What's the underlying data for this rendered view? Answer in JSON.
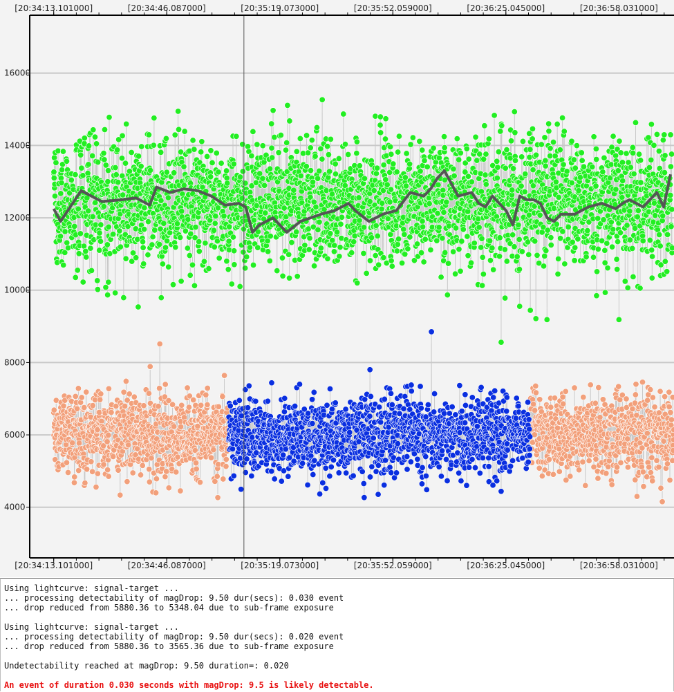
{
  "chart_data": {
    "type": "scatter",
    "x_tick_labels_top": [
      "[20:34:13.101000]",
      "[20:34:46.087000]",
      "[20:35:19.073000]",
      "[20:35:52.059000]",
      "[20:36:25.045000]",
      "[20:36:58.031000]"
    ],
    "x_tick_labels_bottom": [
      "[20:34:13.101000]",
      "[20:34:46.087000]",
      "[20:35:19.073000]",
      "[20:35:52.059000]",
      "[20:36:25.045000]",
      "[20:36:58.031000]"
    ],
    "x_tick_seconds": [
      0,
      32.986,
      65.972,
      98.958,
      131.944,
      164.93
    ],
    "xlim": [
      -7.0,
      181.0
    ],
    "y_ticks": [
      4000,
      6000,
      8000,
      10000,
      12000,
      14000,
      16000
    ],
    "y_tick_labels": [
      "4000",
      "6000",
      "8000",
      "10000",
      "12000",
      "14000",
      "16000"
    ],
    "ylim": [
      2600,
      17600
    ],
    "grid": true,
    "cursor_x": 55.5,
    "series": [
      {
        "role": "reference-star",
        "color": "#22ee22",
        "mean": 12400,
        "noise_sd": 1400,
        "x_range": [
          0,
          181.0
        ]
      },
      {
        "role": "reference-smoothed",
        "color": "#555555",
        "x": [
          0,
          2,
          8,
          14,
          20,
          24,
          28,
          30,
          34,
          38,
          42,
          46,
          50,
          54,
          56,
          58,
          60,
          64,
          68,
          72,
          78,
          82,
          86,
          88,
          92,
          96,
          100,
          104,
          108,
          110,
          112,
          114,
          118,
          122,
          124,
          126,
          128,
          130,
          132,
          134,
          136,
          138,
          140,
          142,
          144,
          146,
          148,
          152,
          156,
          160,
          164,
          166,
          168,
          172,
          174,
          176,
          178,
          180
        ],
        "y": [
          12250,
          11900,
          12750,
          12450,
          12500,
          12550,
          12350,
          12850,
          12700,
          12800,
          12750,
          12600,
          12350,
          12400,
          12300,
          11600,
          11800,
          12000,
          11600,
          11900,
          12100,
          12200,
          12400,
          12200,
          11900,
          12100,
          12200,
          12700,
          12600,
          12800,
          13100,
          13300,
          12600,
          12700,
          12400,
          12300,
          12600,
          12400,
          12200,
          11800,
          12600,
          12500,
          12500,
          12400,
          12000,
          11900,
          12100,
          12100,
          12300,
          12400,
          12250,
          12400,
          12500,
          12300,
          12500,
          12700,
          12300,
          13200
        ]
      },
      {
        "role": "target-baseline",
        "color": "#f2a07b",
        "mean": 6000,
        "noise_sd": 850,
        "x_ranges": [
          [
            0,
            51.0
          ],
          [
            139.0,
            181.0
          ]
        ]
      },
      {
        "role": "target-event",
        "color": "#0a2fe0",
        "mean": 6000,
        "noise_sd": 850,
        "x_range": [
          51.0,
          139.0
        ]
      }
    ]
  },
  "log": {
    "lines": [
      "Using lightcurve: signal-target ...",
      "... processing detectability of magDrop: 9.50 dur(secs): 0.030 event",
      "... drop reduced from 5880.36 to 5348.04 due to sub-frame exposure",
      "",
      "Using lightcurve: signal-target ...",
      "... processing detectability of magDrop: 9.50 dur(secs): 0.020 event",
      "... drop reduced from 5880.36 to 3565.36 due to sub-frame exposure",
      "",
      "Undetectability reached at magDrop: 9.50 duration=: 0.020",
      ""
    ],
    "alert": "An event of duration 0.030 seconds with magDrop: 9.5 is likely detectable.",
    "alert_color": "#e81010"
  }
}
